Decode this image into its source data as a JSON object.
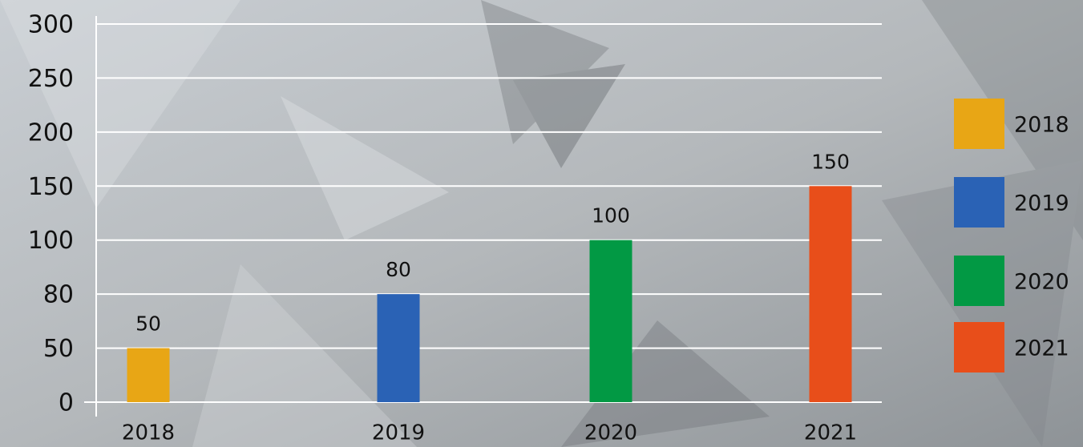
{
  "chart_data": {
    "type": "bar",
    "categories": [
      "2018",
      "2019",
      "2020",
      "2021"
    ],
    "values": [
      50,
      80,
      100,
      150
    ],
    "colors": [
      "#e8a615",
      "#2a62b5",
      "#029944",
      "#e84e1a"
    ],
    "ylim": [
      0,
      300
    ],
    "yticks": [
      0,
      50,
      80,
      100,
      150,
      200,
      250,
      300
    ],
    "grid": true,
    "legend": "right"
  }
}
